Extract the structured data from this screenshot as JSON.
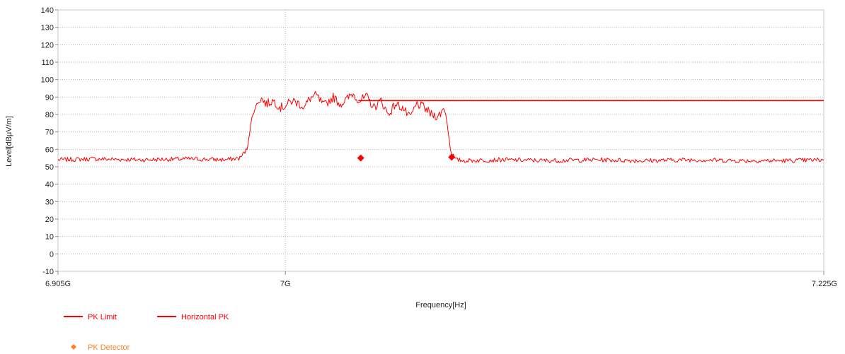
{
  "chart_data": {
    "type": "line",
    "xlabel": "Frequency[Hz]",
    "ylabel": "Level[dBμV/m]",
    "xlim": [
      6.905,
      7.225
    ],
    "ylim": [
      -10,
      140
    ],
    "x_unit": "GHz",
    "x_ticks": [
      {
        "value": 6.905,
        "label": "6.905G"
      },
      {
        "value": 7.0,
        "label": "7G"
      },
      {
        "value": 7.225,
        "label": "7.225G"
      }
    ],
    "y_ticks": [
      -10,
      0,
      10,
      20,
      30,
      40,
      50,
      60,
      70,
      80,
      90,
      100,
      110,
      120,
      130,
      140
    ],
    "grid": true,
    "legend_position": "bottom-left",
    "series": [
      {
        "name": "PK Limit",
        "color": "#ff0000",
        "x": [
          7.0305,
          7.225
        ],
        "y": [
          88,
          88
        ]
      },
      {
        "name": "Horizontal PK",
        "color": "#ff0000",
        "x": [
          6.905,
          6.92,
          6.94,
          6.96,
          6.975,
          6.981,
          6.984,
          6.986,
          6.9885,
          6.99,
          6.992,
          6.995,
          6.998,
          7.0,
          7.003,
          7.006,
          7.008,
          7.01,
          7.013,
          7.016,
          7.02,
          7.023,
          7.026,
          7.028,
          7.031,
          7.034,
          7.037,
          7.04,
          7.043,
          7.046,
          7.049,
          7.052,
          7.055,
          7.058,
          7.061,
          7.064,
          7.0665,
          7.0675,
          7.069,
          7.071,
          7.075,
          7.09,
          7.11,
          7.13,
          7.15,
          7.17,
          7.19,
          7.21,
          7.225
        ],
        "y": [
          54,
          54.5,
          54,
          54.5,
          54,
          55,
          60,
          78,
          88,
          89,
          86,
          88,
          84,
          85,
          88,
          86,
          84,
          89,
          91,
          85,
          90,
          86,
          89,
          92,
          88,
          90,
          84,
          88,
          80,
          86,
          84,
          78,
          86,
          84,
          80,
          79,
          84,
          76,
          60,
          54,
          53.5,
          54,
          53.5,
          54,
          53.5,
          54,
          53.5,
          53.5,
          54
        ]
      }
    ],
    "markers": {
      "name": "PK Detector",
      "color": "#ff7f27",
      "marker_color": "#ff0000",
      "points": [
        {
          "x": 7.0315,
          "y": 55
        },
        {
          "x": 7.0695,
          "y": 55.5
        }
      ]
    }
  }
}
